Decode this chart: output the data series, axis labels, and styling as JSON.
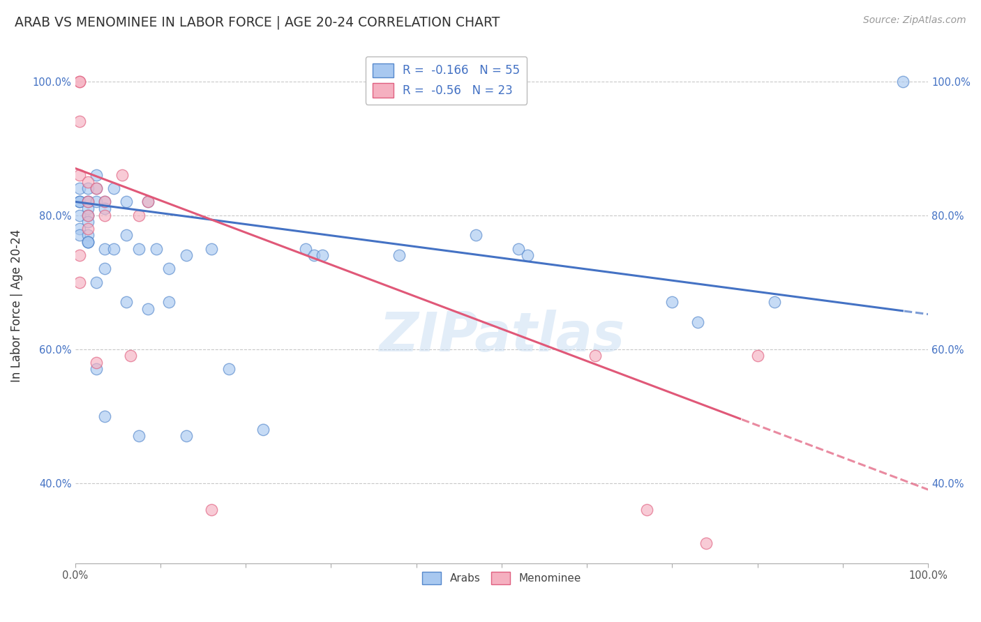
{
  "title": "ARAB VS MENOMINEE IN LABOR FORCE | AGE 20-24 CORRELATION CHART",
  "source": "Source: ZipAtlas.com",
  "ylabel": "In Labor Force | Age 20-24",
  "xlim": [
    0.0,
    1.0
  ],
  "ylim": [
    0.28,
    1.05
  ],
  "yticks": [
    0.4,
    0.6,
    0.8,
    1.0
  ],
  "ytick_labels": [
    "40.0%",
    "60.0%",
    "80.0%",
    "100.0%"
  ],
  "xtick_labels_end": [
    "0.0%",
    "100.0%"
  ],
  "arab_color": "#a8c8f0",
  "menominee_color": "#f5b0c0",
  "arab_edge_color": "#5588cc",
  "menominee_edge_color": "#e06080",
  "arab_line_color": "#4472c4",
  "menominee_line_color": "#e05878",
  "R_arab": -0.166,
  "N_arab": 55,
  "R_menominee": -0.56,
  "N_menominee": 23,
  "legend_arab_label": "Arabs",
  "legend_menominee_label": "Menominee",
  "watermark": "ZIPatlas",
  "arab_line_intercept": 0.82,
  "arab_line_slope": -0.168,
  "arab_line_solid_end": 0.97,
  "menominee_line_intercept": 0.87,
  "menominee_line_slope": -0.48,
  "menominee_line_solid_end": 0.78,
  "arab_x": [
    0.005,
    0.005,
    0.005,
    0.005,
    0.005,
    0.005,
    0.005,
    0.015,
    0.015,
    0.015,
    0.015,
    0.015,
    0.015,
    0.015,
    0.015,
    0.015,
    0.015,
    0.025,
    0.025,
    0.025,
    0.025,
    0.025,
    0.035,
    0.035,
    0.035,
    0.035,
    0.035,
    0.045,
    0.045,
    0.06,
    0.06,
    0.06,
    0.075,
    0.075,
    0.085,
    0.085,
    0.095,
    0.11,
    0.11,
    0.13,
    0.13,
    0.16,
    0.18,
    0.22,
    0.27,
    0.28,
    0.29,
    0.38,
    0.47,
    0.52,
    0.53,
    0.7,
    0.73,
    0.82,
    0.97
  ],
  "arab_y": [
    0.82,
    0.82,
    0.82,
    0.84,
    0.8,
    0.78,
    0.77,
    0.84,
    0.82,
    0.82,
    0.81,
    0.8,
    0.79,
    0.77,
    0.76,
    0.76,
    0.76,
    0.86,
    0.84,
    0.82,
    0.7,
    0.57,
    0.82,
    0.81,
    0.75,
    0.72,
    0.5,
    0.84,
    0.75,
    0.82,
    0.77,
    0.67,
    0.75,
    0.47,
    0.82,
    0.66,
    0.75,
    0.72,
    0.67,
    0.74,
    0.47,
    0.75,
    0.57,
    0.48,
    0.75,
    0.74,
    0.74,
    0.74,
    0.77,
    0.75,
    0.74,
    0.67,
    0.64,
    0.67,
    1.0
  ],
  "menominee_x": [
    0.005,
    0.005,
    0.005,
    0.005,
    0.005,
    0.005,
    0.015,
    0.015,
    0.015,
    0.015,
    0.025,
    0.025,
    0.035,
    0.035,
    0.055,
    0.065,
    0.075,
    0.085,
    0.16,
    0.61,
    0.67,
    0.74,
    0.8
  ],
  "menominee_y": [
    1.0,
    1.0,
    0.94,
    0.86,
    0.74,
    0.7,
    0.85,
    0.82,
    0.8,
    0.78,
    0.84,
    0.58,
    0.82,
    0.8,
    0.86,
    0.59,
    0.8,
    0.82,
    0.36,
    0.59,
    0.36,
    0.31,
    0.59
  ],
  "background_color": "#ffffff",
  "grid_color": "#c8c8c8"
}
